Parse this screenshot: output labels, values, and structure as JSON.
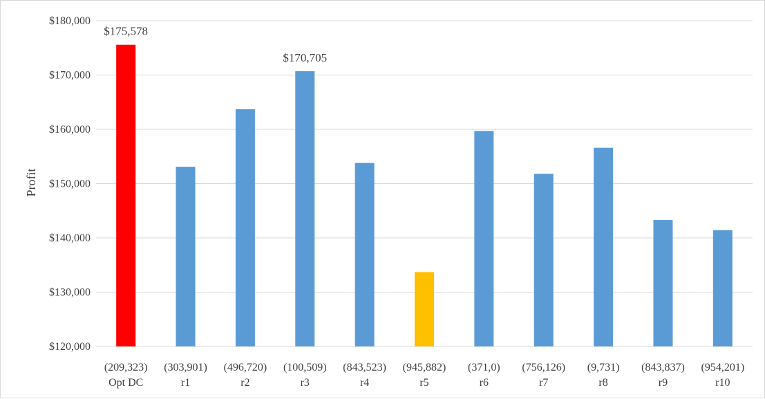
{
  "chart_data": {
    "type": "bar",
    "title": "",
    "xlabel": "",
    "ylabel": "Profit",
    "ylim": [
      120000,
      180000
    ],
    "y_tick_step": 10000,
    "y_tick_labels": [
      "$120,000",
      "$130,000",
      "$140,000",
      "$150,000",
      "$160,000",
      "$170,000",
      "$180,000"
    ],
    "grid": true,
    "legend": "none",
    "categories": [
      {
        "coords": "(209,323)",
        "name": "Opt DC"
      },
      {
        "coords": "(303,901)",
        "name": "r1"
      },
      {
        "coords": "(496,720)",
        "name": "r2"
      },
      {
        "coords": "(100,509)",
        "name": "r3"
      },
      {
        "coords": "(843,523)",
        "name": "r4"
      },
      {
        "coords": "(945,882)",
        "name": "r5"
      },
      {
        "coords": "(371,0)",
        "name": "r6"
      },
      {
        "coords": "(756,126)",
        "name": "r7"
      },
      {
        "coords": "(9,731)",
        "name": "r8"
      },
      {
        "coords": "(843,837)",
        "name": "r9"
      },
      {
        "coords": "(954,201)",
        "name": "r10"
      }
    ],
    "values": [
      175578,
      153100,
      163700,
      170705,
      153800,
      133700,
      159700,
      151800,
      156600,
      143300,
      141400
    ],
    "bar_colors": [
      "#ff0000",
      "#5b9bd5",
      "#5b9bd5",
      "#5b9bd5",
      "#5b9bd5",
      "#ffc000",
      "#5b9bd5",
      "#5b9bd5",
      "#5b9bd5",
      "#5b9bd5",
      "#5b9bd5"
    ],
    "data_labels": [
      {
        "index": 0,
        "text": "$175,578"
      },
      {
        "index": 3,
        "text": "$170,705"
      }
    ],
    "colors": {
      "default_bar": "#5b9bd5",
      "optimal_bar": "#ff0000",
      "best_random_bar": "#ffc000",
      "gridline": "#d9d9d9",
      "text": "#404040"
    }
  }
}
